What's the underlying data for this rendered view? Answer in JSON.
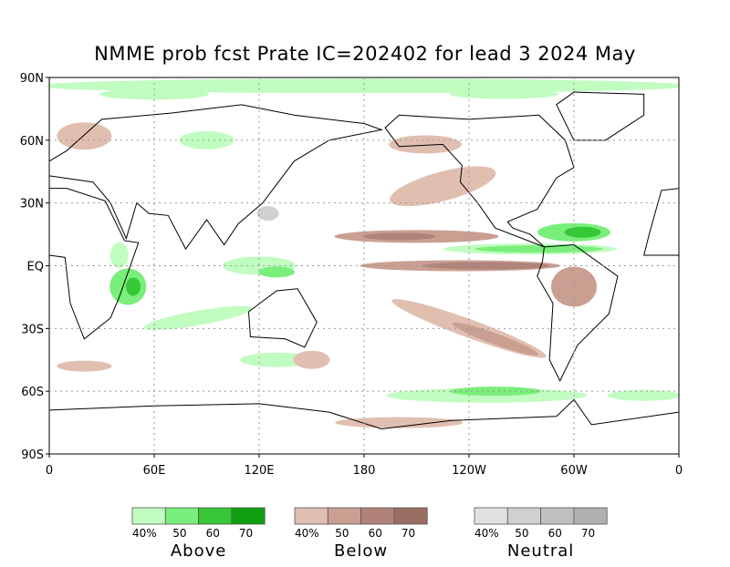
{
  "map": {
    "title": "NMME prob fcst Prate IC=202402 for lead 3 2024 May",
    "y_labels": [
      "90N",
      "60N",
      "30N",
      "EQ",
      "30S",
      "60S",
      "90S"
    ],
    "x_labels": [
      "0",
      "60E",
      "120E",
      "180",
      "120W",
      "60W",
      "0"
    ],
    "legends": [
      {
        "name": "Above",
        "labels": [
          "40%",
          "50",
          "60",
          "70"
        ],
        "colors": [
          "#c1fcc1",
          "#7aee7a",
          "#36c836",
          "#0ea00e"
        ]
      },
      {
        "name": "Below",
        "labels": [
          "40%",
          "50",
          "60",
          "70"
        ],
        "colors": [
          "#e0bfb1",
          "#c99f92",
          "#b18378",
          "#9a6d63"
        ]
      },
      {
        "name": "Neutral",
        "labels": [
          "40%",
          "50",
          "60",
          "70"
        ],
        "colors": [
          "#e1e1e1",
          "#d0d0d0",
          "#c0c0c0",
          "#b0b0b0"
        ]
      }
    ]
  }
}
